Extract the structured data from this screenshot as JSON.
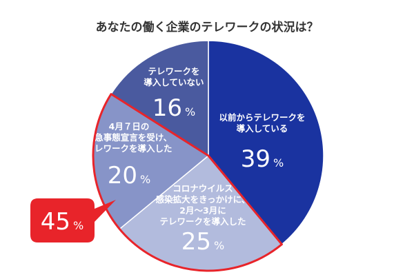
{
  "chart_data": {
    "type": "pie",
    "title": "あなたの働く企業のテレワークの状況は？",
    "slices": [
      {
        "label_lines": [
          "以前からテレワークを",
          "導入している"
        ],
        "value": 39,
        "unit": "%",
        "color": "#1a33a0"
      },
      {
        "label_lines": [
          "コロナウイルス",
          "感染拡大をきっかけに、",
          "2月～3月に",
          "テレワークを導入した"
        ],
        "value": 25,
        "unit": "%",
        "color": "#b2bbdd"
      },
      {
        "label_lines": [
          "4月７日の",
          "緊急事態宣言を受け、",
          "テレワークを導入した"
        ],
        "value": 20,
        "unit": "%",
        "color": "#8794c8"
      },
      {
        "label_lines": [
          "テレワークを",
          "導入していない"
        ],
        "value": 16,
        "unit": "%",
        "color": "#4a5a9f"
      }
    ],
    "highlight": {
      "value": 45,
      "unit": "%",
      "color": "#e8242a",
      "covers_slices": [
        1,
        2
      ]
    }
  }
}
